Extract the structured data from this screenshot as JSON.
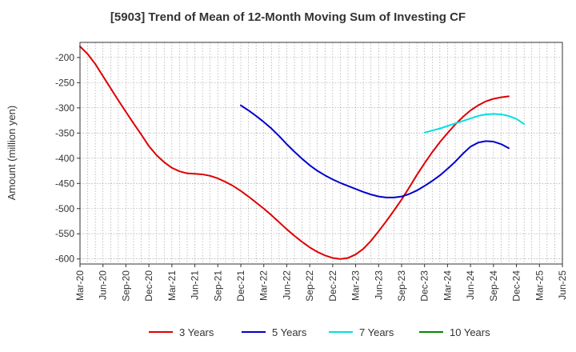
{
  "chart_data": {
    "type": "line",
    "title": "[5903]  Trend of Mean of 12-Month Moving Sum of Investing CF",
    "xlabel": "",
    "ylabel": "Amount (million yen)",
    "ylim": [
      -610,
      -170
    ],
    "yticks": [
      -200,
      -250,
      -300,
      -350,
      -400,
      -450,
      -500,
      -550,
      -600
    ],
    "x_start": "Mar-20",
    "x_end": "Mar-25",
    "xticks": [
      "Mar-20",
      "Jun-20",
      "Sep-20",
      "Dec-20",
      "Mar-21",
      "Jun-21",
      "Sep-21",
      "Dec-21",
      "Mar-22",
      "Jun-22",
      "Sep-22",
      "Dec-22",
      "Mar-23",
      "Jun-23",
      "Sep-23",
      "Dec-23",
      "Mar-24",
      "Jun-24",
      "Sep-24",
      "Dec-24",
      "Mar-25",
      "Jun-25"
    ],
    "grid": true,
    "legend_position": "bottom",
    "series": [
      {
        "name": "3 Years",
        "color": "#dd0000",
        "start_month_index": 0,
        "values": [
          -178,
          -193,
          -213,
          -237,
          -261,
          -285,
          -308,
          -331,
          -353,
          -376,
          -394,
          -408,
          -419,
          -426,
          -430,
          -431,
          -432,
          -435,
          -440,
          -447,
          -455,
          -465,
          -476,
          -488,
          -500,
          -513,
          -527,
          -541,
          -554,
          -566,
          -577,
          -586,
          -593,
          -598,
          -600,
          -598,
          -591,
          -580,
          -564,
          -545,
          -525,
          -504,
          -482,
          -458,
          -433,
          -410,
          -388,
          -368,
          -350,
          -333,
          -318,
          -305,
          -295,
          -287,
          -282,
          -279,
          -277
        ]
      },
      {
        "name": "5 Years",
        "color": "#0000cc",
        "start_month_index": 21,
        "values": [
          -295,
          -305,
          -316,
          -328,
          -341,
          -356,
          -372,
          -387,
          -401,
          -414,
          -425,
          -434,
          -442,
          -449,
          -455,
          -461,
          -467,
          -472,
          -476,
          -478,
          -478,
          -476,
          -471,
          -464,
          -455,
          -445,
          -434,
          -421,
          -407,
          -391,
          -377,
          -369,
          -366,
          -367,
          -372,
          -380
        ]
      },
      {
        "name": "7 Years",
        "color": "#00e0e0",
        "start_month_index": 45,
        "values": [
          -349,
          -345,
          -341,
          -336,
          -331,
          -326,
          -321,
          -316,
          -313,
          -312,
          -313,
          -316,
          -322,
          -332
        ]
      },
      {
        "name": "10 Years",
        "color": "#008800",
        "start_month_index": 0,
        "values": []
      }
    ]
  }
}
